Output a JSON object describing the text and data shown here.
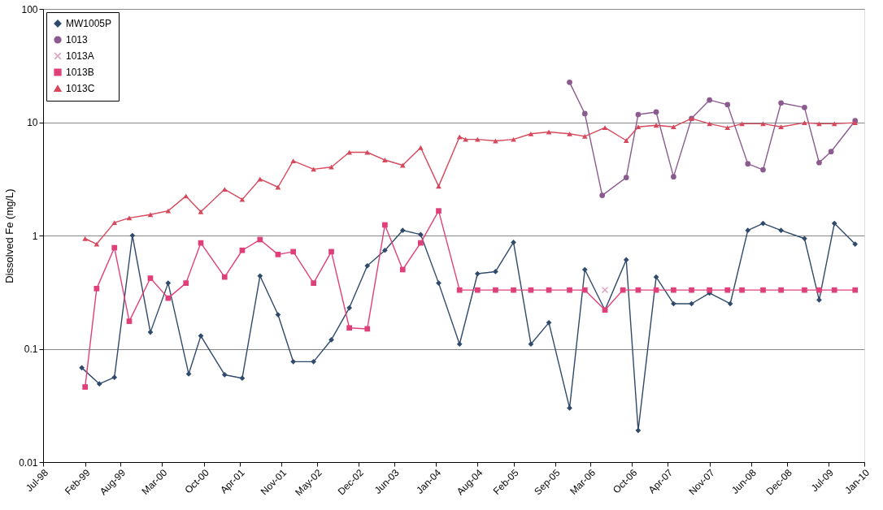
{
  "chart_data": {
    "type": "line",
    "ylabel": "Dissolved Fe (mg/L)",
    "log": true,
    "grid": "y",
    "legend": "top left",
    "ylim": [
      0.01,
      100
    ],
    "yticks": [
      0.01,
      0.1,
      1,
      10,
      100
    ],
    "xlim": [
      "1998-07-01",
      "2010-01-01"
    ],
    "xticks": [
      {
        "value": "1998-07-01",
        "label": "Jul-98"
      },
      {
        "value": "1999-02-01",
        "label": "Feb-99"
      },
      {
        "value": "1999-08-01",
        "label": "Aug-99"
      },
      {
        "value": "2000-03-01",
        "label": "Mar-00"
      },
      {
        "value": "2000-10-01",
        "label": "Oct-00"
      },
      {
        "value": "2001-04-01",
        "label": "Apr-01"
      },
      {
        "value": "2001-11-01",
        "label": "Nov-01"
      },
      {
        "value": "2002-05-01",
        "label": "May-02"
      },
      {
        "value": "2002-12-01",
        "label": "Dec-02"
      },
      {
        "value": "2003-06-01",
        "label": "Jun-03"
      },
      {
        "value": "2004-01-01",
        "label": "Jan-04"
      },
      {
        "value": "2004-08-01",
        "label": "Aug-04"
      },
      {
        "value": "2005-02-01",
        "label": "Feb-05"
      },
      {
        "value": "2005-09-01",
        "label": "Sep-05"
      },
      {
        "value": "2006-03-01",
        "label": "Mar-06"
      },
      {
        "value": "2006-10-01",
        "label": "Oct-06"
      },
      {
        "value": "2007-04-01",
        "label": "Apr-07"
      },
      {
        "value": "2007-11-01",
        "label": "Nov-07"
      },
      {
        "value": "2008-06-01",
        "label": "Jun-08"
      },
      {
        "value": "2008-12-01",
        "label": "Dec-08"
      },
      {
        "value": "2009-07-01",
        "label": "Jul-09"
      },
      {
        "value": "2010-01-01",
        "label": "Jan-10"
      }
    ],
    "series": [
      {
        "name": "MW1005P",
        "color": "#2f4a6b",
        "marker": "diamond",
        "x": [
          "1999-01-15",
          "1999-04-15",
          "1999-07-01",
          "1999-10-01",
          "2000-01-01",
          "2000-04-01",
          "2000-07-15",
          "2000-09-15",
          "2001-01-15",
          "2001-04-15",
          "2001-07-15",
          "2001-10-15",
          "2002-01-01",
          "2002-04-15",
          "2002-07-15",
          "2002-10-15",
          "2003-01-15",
          "2003-04-15",
          "2003-07-15",
          "2003-10-15",
          "2004-01-15",
          "2004-05-01",
          "2004-08-01",
          "2004-11-01",
          "2005-02-01",
          "2005-05-01",
          "2005-08-01",
          "2005-11-15",
          "2006-02-01",
          "2006-05-15",
          "2006-09-01",
          "2006-11-01",
          "2007-02-01",
          "2007-05-01",
          "2007-08-01",
          "2007-11-01",
          "2008-02-15",
          "2008-05-15",
          "2008-08-01",
          "2008-11-01",
          "2009-03-01",
          "2009-05-15",
          "2009-08-01",
          "2009-11-15"
        ],
        "values": [
          0.068,
          0.049,
          0.056,
          1.0,
          0.14,
          0.38,
          0.06,
          0.13,
          0.059,
          0.055,
          0.44,
          0.2,
          0.077,
          0.077,
          0.12,
          0.23,
          0.54,
          0.74,
          1.11,
          1.02,
          0.38,
          0.11,
          0.46,
          0.48,
          0.87,
          0.11,
          0.17,
          0.03,
          0.5,
          0.22,
          0.61,
          0.019,
          0.43,
          0.25,
          0.25,
          0.31,
          0.25,
          1.11,
          1.28,
          1.11,
          0.94,
          0.27,
          1.28,
          0.84
        ]
      },
      {
        "name": "1013",
        "color": "#8b5a8f",
        "marker": "circle",
        "x": [
          "2005-11-15",
          "2006-02-01",
          "2006-05-01",
          "2006-09-01",
          "2006-11-01",
          "2007-02-01",
          "2007-05-01",
          "2007-08-01",
          "2007-11-01",
          "2008-02-01",
          "2008-05-15",
          "2008-08-01",
          "2008-11-01",
          "2009-03-01",
          "2009-05-15",
          "2009-07-15",
          "2009-11-15"
        ],
        "values": [
          22.5,
          11.9,
          2.26,
          3.25,
          11.7,
          12.3,
          3.3,
          10.8,
          15.7,
          14.3,
          4.3,
          3.8,
          14.8,
          13.5,
          4.4,
          5.5,
          10.3
        ]
      },
      {
        "name": "1013A",
        "color": "#d9a3bd",
        "marker": "cross",
        "x": [
          "2006-05-15"
        ],
        "values": [
          0.33
        ]
      },
      {
        "name": "1013B",
        "color": "#e0407a",
        "marker": "square",
        "x": [
          "1999-02-01",
          "1999-04-01",
          "1999-07-01",
          "1999-09-15",
          "2000-01-01",
          "2000-04-01",
          "2000-07-01",
          "2000-09-15",
          "2001-01-15",
          "2001-04-15",
          "2001-07-15",
          "2001-10-15",
          "2002-01-01",
          "2002-04-15",
          "2002-07-15",
          "2002-10-15",
          "2003-01-15",
          "2003-04-15",
          "2003-07-15",
          "2003-10-15",
          "2004-01-15",
          "2004-05-01",
          "2004-08-01",
          "2004-11-01",
          "2005-02-01",
          "2005-05-01",
          "2005-08-01",
          "2005-11-15",
          "2006-02-01",
          "2006-05-15",
          "2006-08-15",
          "2006-11-01",
          "2007-02-01",
          "2007-05-01",
          "2007-08-01",
          "2007-11-01",
          "2008-02-01",
          "2008-04-15",
          "2008-08-01",
          "2008-11-01",
          "2009-03-01",
          "2009-05-15",
          "2009-08-01",
          "2009-11-15"
        ],
        "values": [
          0.046,
          0.34,
          0.78,
          0.175,
          0.42,
          0.28,
          0.38,
          0.86,
          0.43,
          0.74,
          0.92,
          0.68,
          0.72,
          0.38,
          0.72,
          0.153,
          0.15,
          1.24,
          0.5,
          0.86,
          1.65,
          0.33,
          0.33,
          0.33,
          0.33,
          0.33,
          0.33,
          0.33,
          0.33,
          0.22,
          0.33,
          0.33,
          0.33,
          0.33,
          0.33,
          0.33,
          0.33,
          0.33,
          0.33,
          0.33,
          0.33,
          0.33,
          0.33,
          0.33
        ]
      },
      {
        "name": "1013C",
        "color": "#d6485c",
        "marker": "triangle",
        "x": [
          "1999-02-01",
          "1999-04-01",
          "1999-07-01",
          "1999-09-15",
          "2000-01-01",
          "2000-04-01",
          "2000-07-01",
          "2000-09-15",
          "2001-01-15",
          "2001-04-15",
          "2001-07-15",
          "2001-10-15",
          "2002-01-01",
          "2002-04-15",
          "2002-07-15",
          "2002-10-15",
          "2003-01-15",
          "2003-04-15",
          "2003-07-15",
          "2003-10-15",
          "2004-01-15",
          "2004-05-01",
          "2004-06-01",
          "2004-08-01",
          "2004-11-01",
          "2005-02-01",
          "2005-05-01",
          "2005-08-01",
          "2005-11-15",
          "2006-02-01",
          "2006-05-15",
          "2006-09-01",
          "2006-11-01",
          "2007-02-01",
          "2007-05-01",
          "2007-08-01",
          "2007-11-01",
          "2008-02-01",
          "2008-04-15",
          "2008-08-01",
          "2008-11-01",
          "2009-03-01",
          "2009-05-15",
          "2009-08-01",
          "2009-11-15"
        ],
        "values": [
          0.94,
          0.84,
          1.3,
          1.43,
          1.53,
          1.65,
          2.23,
          1.62,
          2.56,
          2.08,
          3.15,
          2.67,
          4.56,
          3.85,
          4.02,
          5.43,
          5.43,
          4.64,
          4.17,
          5.97,
          2.72,
          7.43,
          7.06,
          7.06,
          6.84,
          7.06,
          7.9,
          8.2,
          7.9,
          7.5,
          8.96,
          6.9,
          9.1,
          9.4,
          9.1,
          10.8,
          9.7,
          8.96,
          9.7,
          9.7,
          9.1,
          9.9,
          9.7,
          9.7,
          9.9
        ]
      }
    ]
  }
}
